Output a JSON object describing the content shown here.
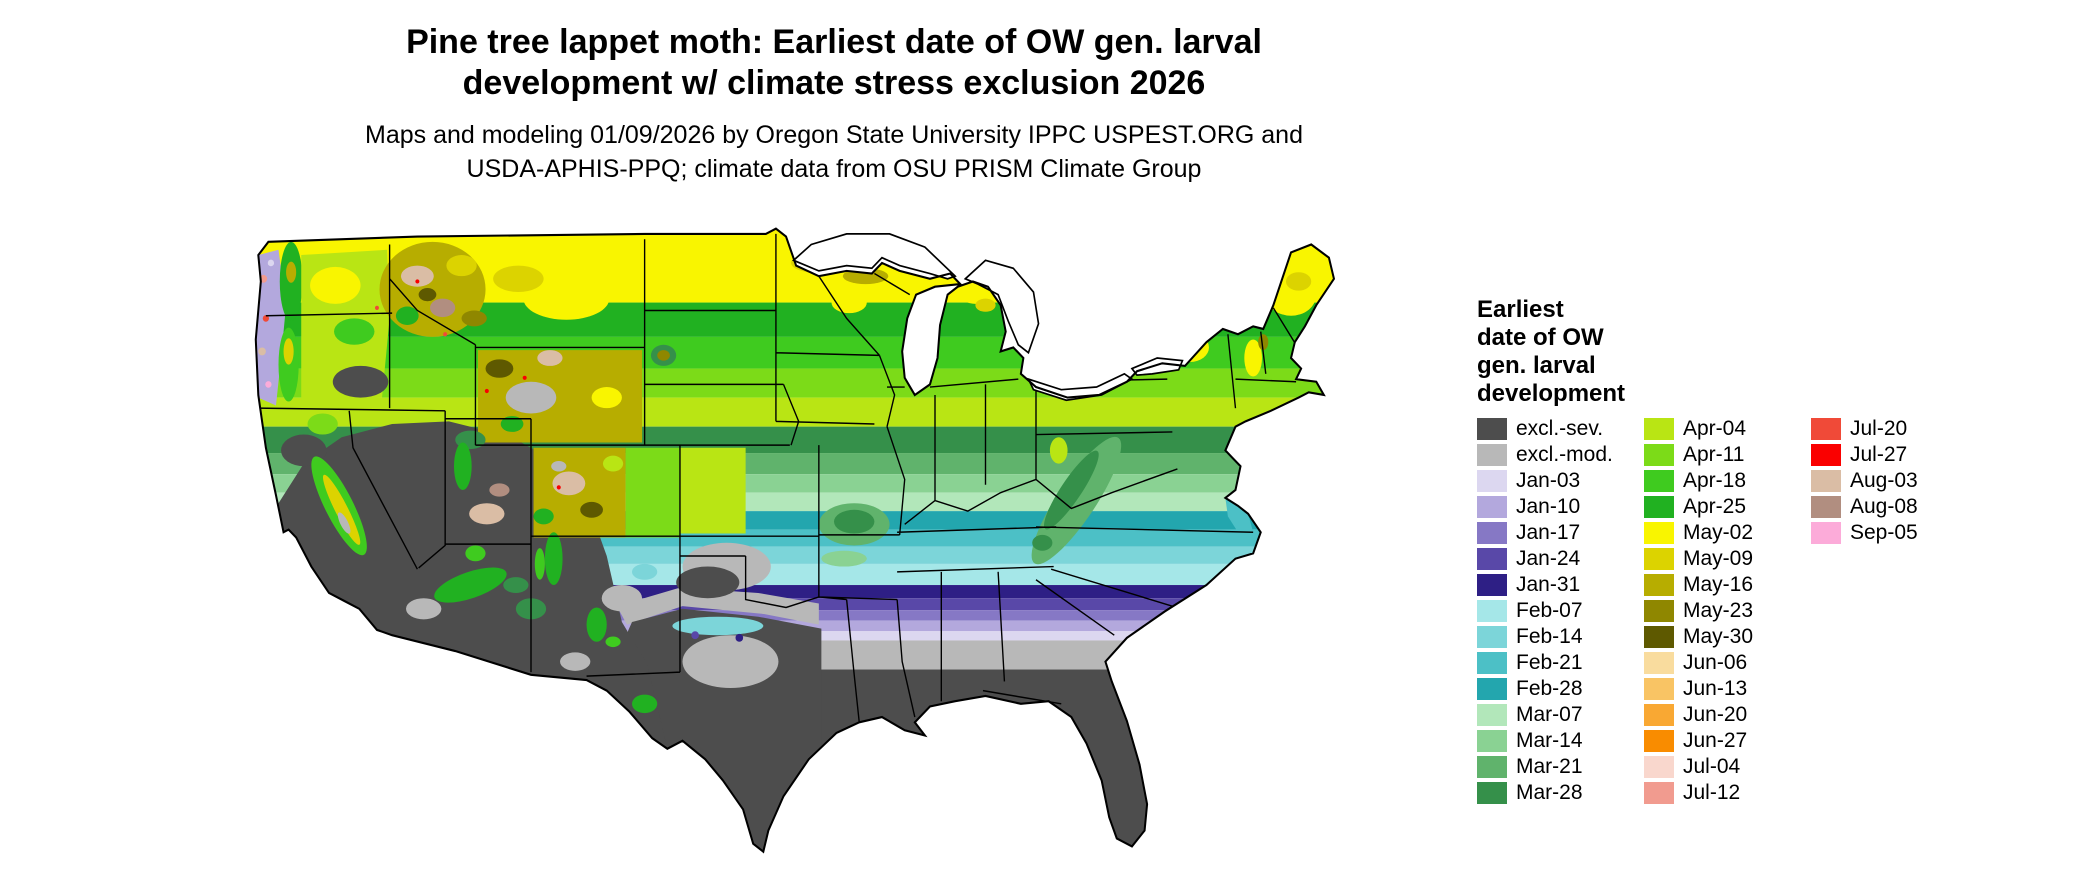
{
  "title": {
    "line1": "Pine tree lappet moth: Earliest date of OW gen. larval",
    "line2": "development w/ climate stress exclusion 2026"
  },
  "subtitle": {
    "line1": "Maps and modeling 01/09/2026 by Oregon State University IPPC USPEST.ORG and",
    "line2": "USDA-APHIS-PPQ; climate data from OSU PRISM Climate Group"
  },
  "legend": {
    "title_lines": [
      "Earliest",
      "date of OW",
      "gen. larval",
      "development"
    ],
    "columns": [
      {
        "entries": [
          {
            "label": "excl.-sev.",
            "color": "#4d4d4d"
          },
          {
            "label": "excl.-mod.",
            "color": "#b8b8b8"
          },
          {
            "label": "Jan-03",
            "color": "#dcd7f0"
          },
          {
            "label": "Jan-10",
            "color": "#b3a8dd"
          },
          {
            "label": "Jan-17",
            "color": "#8678c5"
          },
          {
            "label": "Jan-24",
            "color": "#5948a8"
          },
          {
            "label": "Jan-31",
            "color": "#2e1f85"
          },
          {
            "label": "Feb-07",
            "color": "#a5e7e8"
          },
          {
            "label": "Feb-14",
            "color": "#7cd5d9"
          },
          {
            "label": "Feb-21",
            "color": "#4cc0c6"
          },
          {
            "label": "Feb-28",
            "color": "#23a6ae"
          },
          {
            "label": "Mar-07",
            "color": "#b2e7ba"
          },
          {
            "label": "Mar-14",
            "color": "#8ad293"
          },
          {
            "label": "Mar-21",
            "color": "#60b36c"
          },
          {
            "label": "Mar-28",
            "color": "#35904a"
          }
        ]
      },
      {
        "entries": [
          {
            "label": "Apr-04",
            "color": "#b9e514"
          },
          {
            "label": "Apr-11",
            "color": "#7cdb18"
          },
          {
            "label": "Apr-18",
            "color": "#3fcb1f"
          },
          {
            "label": "Apr-25",
            "color": "#21b121"
          },
          {
            "label": "May-02",
            "color": "#f9f500"
          },
          {
            "label": "May-09",
            "color": "#dcd300"
          },
          {
            "label": "May-16",
            "color": "#b7ad00"
          },
          {
            "label": "May-23",
            "color": "#8f8700"
          },
          {
            "label": "May-30",
            "color": "#5e5900"
          },
          {
            "label": "Jun-06",
            "color": "#f9dc9e"
          },
          {
            "label": "Jun-13",
            "color": "#f9c464"
          },
          {
            "label": "Jun-20",
            "color": "#f9a833"
          },
          {
            "label": "Jun-27",
            "color": "#f98c00"
          },
          {
            "label": "Jul-04",
            "color": "#f9d7cd"
          },
          {
            "label": "Jul-12",
            "color": "#f19b8f"
          }
        ]
      },
      {
        "entries": [
          {
            "label": "Jul-20",
            "color": "#f04a38"
          },
          {
            "label": "Jul-27",
            "color": "#fa0000"
          },
          {
            "label": "Aug-03",
            "color": "#dabda5"
          },
          {
            "label": "Aug-08",
            "color": "#b18e80"
          },
          {
            "label": "Sep-05",
            "color": "#fcabd9"
          }
        ]
      }
    ]
  },
  "map": {
    "region": "Continental United States",
    "water_color": "#ffffff",
    "border_color": "#000000"
  }
}
